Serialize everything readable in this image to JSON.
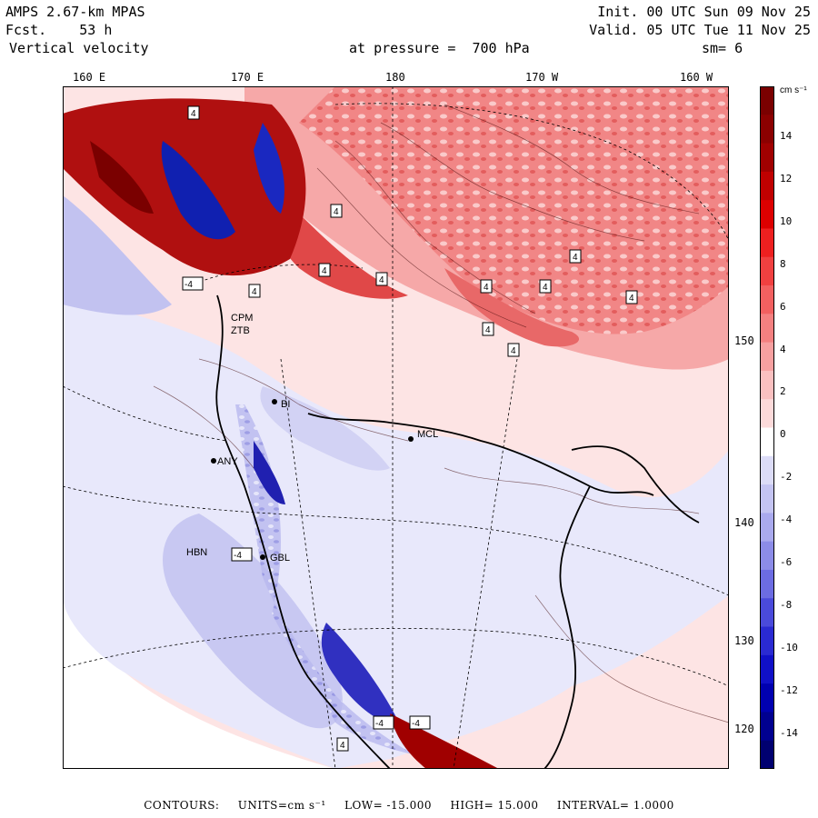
{
  "header": {
    "model": "AMPS 2.67-km MPAS",
    "forecast": "Fcst.    53 h",
    "field": "Vertical velocity",
    "init": "Init. 00 UTC Sun 09 Nov 25",
    "valid": "Valid. 05 UTC Tue 11 Nov 25",
    "pressure": "at pressure =  700 hPa",
    "smoothing": "sm= 6"
  },
  "lon_labels": [
    "160 E",
    "170 E",
    "180",
    "170 W",
    "160 W"
  ],
  "lat_labels": [
    "150 W",
    "140 W",
    "130 W",
    "120 W"
  ],
  "stations": [
    "CPM",
    "ZTB",
    "BI",
    "MCL",
    "ANY",
    "HBN",
    "GBL"
  ],
  "contour_labels": [
    "4",
    "-4"
  ],
  "colorbar": {
    "units": "cm s⁻¹",
    "ticks": [
      "14",
      "12",
      "10",
      "8",
      "6",
      "4",
      "2",
      "0",
      "-2",
      "-4",
      "-6",
      "-8",
      "-10",
      "-12",
      "-14"
    ],
    "colors": [
      "#7a0000",
      "#8b0000",
      "#a00000",
      "#c00000",
      "#dd0000",
      "#ee2020",
      "#f04040",
      "#f26060",
      "#f48080",
      "#f7a0a0",
      "#fac0c0",
      "#fcdada",
      "#ffffff",
      "#dcdcf7",
      "#c4c4f2",
      "#aaaaee",
      "#8c8ce8",
      "#6c6ce2",
      "#4a4adb",
      "#2a2ad2",
      "#1010c8",
      "#0000b0",
      "#000090",
      "#000070"
    ]
  },
  "footer": {
    "contours": "CONTOURS:",
    "units": "UNITS=cm s⁻¹",
    "low": "LOW= -15.000",
    "high": "HIGH= 15.000",
    "interval": "INTERVAL= 1.0000"
  }
}
